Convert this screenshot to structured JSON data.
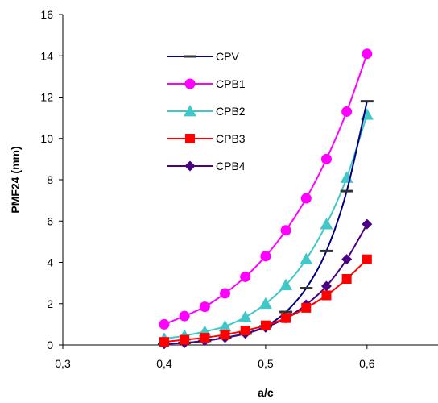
{
  "chart_data": {
    "type": "line",
    "title": "",
    "xlabel": "a/c",
    "ylabel": "PMF24 (mm)",
    "xlim": [
      0.3,
      0.67
    ],
    "ylim": [
      0,
      16
    ],
    "x_ticks": [
      0.3,
      0.4,
      0.5,
      0.6
    ],
    "x_tick_labels": [
      "0,3",
      "0,4",
      "0,5",
      "0,6"
    ],
    "y_ticks": [
      0,
      2,
      4,
      6,
      8,
      10,
      12,
      14,
      16
    ],
    "y_tick_labels": [
      "0",
      "2",
      "4",
      "6",
      "8",
      "10",
      "12",
      "14",
      "16"
    ],
    "grid": false,
    "legend_position": "upper-middle",
    "series": [
      {
        "name": "CPV",
        "color": "#000080",
        "marker": "dash",
        "x": [
          0.4,
          0.42,
          0.44,
          0.46,
          0.48,
          0.5,
          0.52,
          0.54,
          0.56,
          0.58,
          0.6
        ],
        "y": [
          0.05,
          0.1,
          0.2,
          0.35,
          0.55,
          0.9,
          1.6,
          2.75,
          4.55,
          7.45,
          11.8
        ]
      },
      {
        "name": "CPB1",
        "color": "#FF00FF",
        "marker": "circle",
        "x": [
          0.4,
          0.42,
          0.44,
          0.46,
          0.48,
          0.5,
          0.52,
          0.54,
          0.56,
          0.58,
          0.6
        ],
        "y": [
          1.0,
          1.4,
          1.85,
          2.5,
          3.3,
          4.3,
          5.55,
          7.1,
          9.0,
          11.3,
          14.1
        ]
      },
      {
        "name": "CPB2",
        "color": "#40C8C8",
        "marker": "triangle",
        "x": [
          0.4,
          0.42,
          0.44,
          0.46,
          0.48,
          0.5,
          0.52,
          0.54,
          0.56,
          0.58,
          0.6
        ],
        "y": [
          0.3,
          0.45,
          0.65,
          0.9,
          1.35,
          2.0,
          2.9,
          4.15,
          5.85,
          8.1,
          11.15
        ]
      },
      {
        "name": "CPB3",
        "color": "#FF0000",
        "marker": "square",
        "x": [
          0.4,
          0.42,
          0.44,
          0.46,
          0.48,
          0.5,
          0.52,
          0.54,
          0.56,
          0.58,
          0.6
        ],
        "y": [
          0.15,
          0.25,
          0.35,
          0.5,
          0.7,
          0.95,
          1.3,
          1.8,
          2.4,
          3.2,
          4.15
        ]
      },
      {
        "name": "CPB4",
        "color": "#4B0082",
        "marker": "diamond",
        "x": [
          0.4,
          0.42,
          0.44,
          0.46,
          0.48,
          0.5,
          0.52,
          0.54,
          0.56,
          0.58,
          0.6
        ],
        "y": [
          0.05,
          0.1,
          0.2,
          0.35,
          0.55,
          0.85,
          1.3,
          1.95,
          2.85,
          4.15,
          5.85
        ]
      }
    ]
  }
}
